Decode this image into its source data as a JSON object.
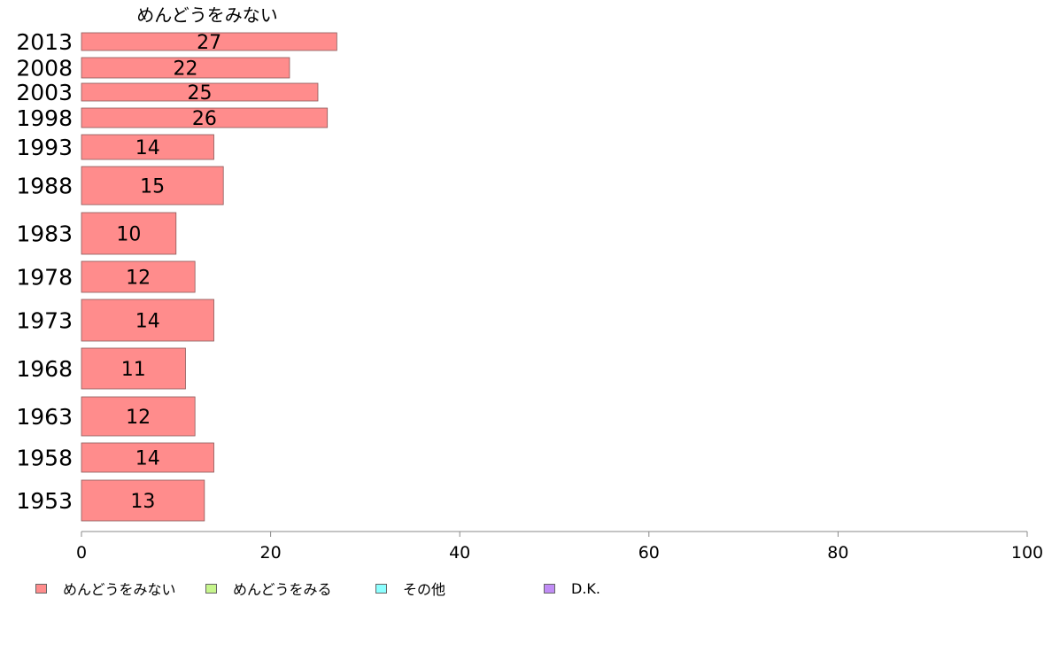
{
  "chart_data": {
    "type": "bar",
    "orientation": "horizontal",
    "title": "めんどうをみない",
    "categories": [
      "2013",
      "2008",
      "2003",
      "1998",
      "1993",
      "1988",
      "1983",
      "1978",
      "1973",
      "1968",
      "1963",
      "1958",
      "1953"
    ],
    "series": [
      {
        "name": "めんどうをみない",
        "values": [
          27,
          22,
          25,
          26,
          14,
          15,
          10,
          12,
          14,
          11,
          12,
          14,
          13
        ],
        "color": "#ff8c8c"
      }
    ],
    "xlim": [
      0,
      100
    ],
    "xticks": [
      0,
      20,
      40,
      60,
      80,
      100
    ],
    "grid": false,
    "legend_position": "bottom"
  },
  "legend": [
    {
      "label": "めんどうをみない",
      "color": "#ff8c8c"
    },
    {
      "label": "めんどうをみる",
      "color": "#c6f58c"
    },
    {
      "label": "その他",
      "color": "#8cffff"
    },
    {
      "label": "D.K.",
      "color": "#c08cf5"
    }
  ]
}
